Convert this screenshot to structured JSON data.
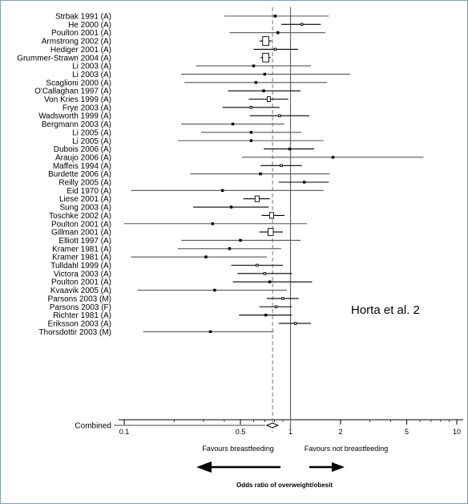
{
  "chart_data": {
    "type": "forest",
    "xlabel": "Odds ratio of overweight/obesit",
    "xscale": "log",
    "xlim": [
      0.1,
      10
    ],
    "xticks": [
      0.1,
      0.5,
      1,
      2,
      5,
      10
    ],
    "xtick_labels": [
      "0.1",
      "0.5",
      "1",
      "2",
      "5",
      "10"
    ],
    "reference_line": 1,
    "pooled_estimate_line": 0.78,
    "favour_left": "Favours breastfeeding",
    "favour_right": "Favours not breastfeeding",
    "annotation": "Horta et al. 2",
    "studies": [
      {
        "label": "Strbak 1991 (A)",
        "or": 0.81,
        "lo": 0.4,
        "hi": 1.7,
        "weight": 1
      },
      {
        "label": "He 2000 (A)",
        "or": 1.17,
        "lo": 0.88,
        "hi": 1.52,
        "weight": 2
      },
      {
        "label": "Poulton 2001 (A)",
        "or": 0.84,
        "lo": 0.43,
        "hi": 1.62,
        "weight": 1
      },
      {
        "label": "Armstrong 2002 (A)",
        "or": 0.71,
        "lo": 0.65,
        "hi": 0.77,
        "weight": 6
      },
      {
        "label": "Hediger 2001 (A)",
        "or": 0.81,
        "lo": 0.6,
        "hi": 1.11,
        "weight": 2
      },
      {
        "label": "Grummer-Strawn 2004 (A)",
        "or": 0.71,
        "lo": 0.66,
        "hi": 0.76,
        "weight": 6
      },
      {
        "label": "Li 2003 (A)",
        "or": 0.6,
        "lo": 0.27,
        "hi": 1.33,
        "weight": 1
      },
      {
        "label": "Li 2003 (A)",
        "or": 0.7,
        "lo": 0.22,
        "hi": 2.28,
        "weight": 1
      },
      {
        "label": "Scaglioni 2000 (A)",
        "or": 0.62,
        "lo": 0.23,
        "hi": 1.66,
        "weight": 1
      },
      {
        "label": "O'Callaghan 1997 (A)",
        "or": 0.69,
        "lo": 0.42,
        "hi": 1.15,
        "weight": 1
      },
      {
        "label": "Von Kries 1999 (A)",
        "or": 0.74,
        "lo": 0.56,
        "hi": 0.97,
        "weight": 3
      },
      {
        "label": "Frye 2003 (A)",
        "or": 0.58,
        "lo": 0.39,
        "hi": 0.86,
        "weight": 2
      },
      {
        "label": "Wadsworth 1999 (A)",
        "or": 0.86,
        "lo": 0.57,
        "hi": 1.3,
        "weight": 2
      },
      {
        "label": "Bergmann 2003 (A)",
        "or": 0.45,
        "lo": 0.22,
        "hi": 0.92,
        "weight": 1
      },
      {
        "label": "Li 2005 (A)",
        "or": 0.58,
        "lo": 0.29,
        "hi": 1.16,
        "weight": 1
      },
      {
        "label": "Li 2005 (A)",
        "or": 0.58,
        "lo": 0.21,
        "hi": 1.58,
        "weight": 1
      },
      {
        "label": "Dubois 2006 (A)",
        "or": 0.99,
        "lo": 0.69,
        "hi": 1.39,
        "weight": 1
      },
      {
        "label": "Araujo 2006 (A)",
        "or": 1.8,
        "lo": 0.51,
        "hi": 6.31,
        "weight": 1
      },
      {
        "label": "Maffeis 1994 (A)",
        "or": 0.88,
        "lo": 0.66,
        "hi": 1.17,
        "weight": 2
      },
      {
        "label": "Burdette 2006 (A)",
        "or": 0.66,
        "lo": 0.25,
        "hi": 1.72,
        "weight": 1
      },
      {
        "label": "Reilly 2005 (A)",
        "or": 1.21,
        "lo": 0.85,
        "hi": 1.7,
        "weight": 1
      },
      {
        "label": "Eid 1970 (A)",
        "or": 0.39,
        "lo": 0.11,
        "hi": 1.58,
        "weight": 1
      },
      {
        "label": "Liese 2001 (A)",
        "or": 0.63,
        "lo": 0.52,
        "hi": 0.75,
        "weight": 4
      },
      {
        "label": "Sung 2003 (A)",
        "or": 0.44,
        "lo": 0.26,
        "hi": 0.74,
        "weight": 1
      },
      {
        "label": "Toschke 2002 (A)",
        "or": 0.77,
        "lo": 0.67,
        "hi": 0.92,
        "weight": 4
      },
      {
        "label": "Poulton 2001 (A)",
        "or": 0.34,
        "lo": 0.1,
        "hi": 1.26,
        "weight": 1
      },
      {
        "label": "Gillman 2001 (A)",
        "or": 0.76,
        "lo": 0.65,
        "hi": 0.9,
        "weight": 5
      },
      {
        "label": "Elliott 1997 (A)",
        "or": 0.5,
        "lo": 0.22,
        "hi": 1.15,
        "weight": 1
      },
      {
        "label": "Kramer 1981 (A)",
        "or": 0.43,
        "lo": 0.21,
        "hi": 0.88,
        "weight": 1
      },
      {
        "label": "Kramer 1981 (A)",
        "or": 0.31,
        "lo": 0.11,
        "hi": 0.72,
        "weight": 1
      },
      {
        "label": "Tulldahl 1999 (A)",
        "or": 0.63,
        "lo": 0.44,
        "hi": 0.9,
        "weight": 2
      },
      {
        "label": "Victora 2003 (A)",
        "or": 0.7,
        "lo": 0.48,
        "hi": 1.02,
        "weight": 2
      },
      {
        "label": "Poulton 2001 (A)",
        "or": 0.75,
        "lo": 0.45,
        "hi": 1.35,
        "weight": 1
      },
      {
        "label": "Kvaavik 2005 (A)",
        "or": 0.35,
        "lo": 0.12,
        "hi": 0.95,
        "weight": 1
      },
      {
        "label": "Parsons 2003 (M)",
        "or": 0.9,
        "lo": 0.72,
        "hi": 1.12,
        "weight": 2
      },
      {
        "label": "Parsons 2003 (F)",
        "or": 0.82,
        "lo": 0.65,
        "hi": 1.02,
        "weight": 2
      },
      {
        "label": "Richter 1981 (A)",
        "or": 0.71,
        "lo": 0.49,
        "hi": 1.02,
        "weight": 1
      },
      {
        "label": "Eriksson 2003 (A)",
        "or": 1.07,
        "lo": 0.85,
        "hi": 1.33,
        "weight": 2
      },
      {
        "label": "Thorsdottir 2003 (M)",
        "or": 0.33,
        "lo": 0.13,
        "hi": 0.79,
        "weight": 1
      }
    ],
    "combined": {
      "label": "Combined",
      "or": 0.78,
      "lo": 0.72,
      "hi": 0.84
    }
  }
}
